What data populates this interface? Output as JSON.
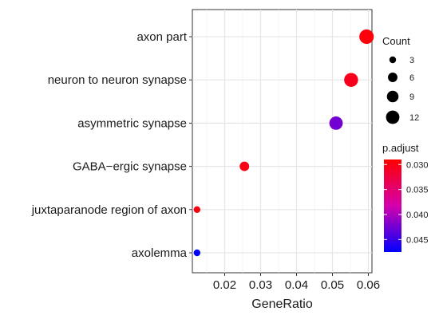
{
  "chart_data": {
    "type": "scatter",
    "xlabel": "GeneRatio",
    "ylabel": "",
    "xlim": [
      0.011,
      0.061
    ],
    "x_ticks": [
      0.02,
      0.03,
      0.04,
      0.05,
      0.06
    ],
    "x_tick_labels": [
      "0.02",
      "0.03",
      "0.04",
      "0.05",
      "0.06"
    ],
    "grid": true,
    "categories": [
      "axon part",
      "neuron to neuron synapse",
      "asymmetric synapse",
      "GABA−ergic synapse",
      "juxtaparanode region of axon",
      "axolemma"
    ],
    "points": [
      {
        "category": "axon part",
        "x": 0.0595,
        "count": 14,
        "p_adjust": 0.0295
      },
      {
        "category": "neuron to neuron synapse",
        "x": 0.0552,
        "count": 13,
        "p_adjust": 0.0305
      },
      {
        "category": "asymmetric synapse",
        "x": 0.051,
        "count": 12,
        "p_adjust": 0.0425
      },
      {
        "category": "GABA−ergic synapse",
        "x": 0.0255,
        "count": 6,
        "p_adjust": 0.03
      },
      {
        "category": "juxtaparanode region of axon",
        "x": 0.0123,
        "count": 3,
        "p_adjust": 0.03
      },
      {
        "category": "axolemma",
        "x": 0.0123,
        "count": 3,
        "p_adjust": 0.0475
      }
    ],
    "size_legend": {
      "title": "Count",
      "values": [
        3,
        6,
        9,
        12
      ],
      "labels": [
        "3",
        "6",
        "9",
        "12"
      ]
    },
    "color_legend": {
      "title": "p.adjust",
      "range": [
        0.029,
        0.0475
      ],
      "ticks": [
        0.03,
        0.035,
        0.04,
        0.045
      ],
      "tick_labels": [
        "0.030",
        "0.035",
        "0.040",
        "0.045"
      ],
      "low_color": "#ff0000",
      "high_color": "#0000ff"
    },
    "legend_position": "right"
  }
}
